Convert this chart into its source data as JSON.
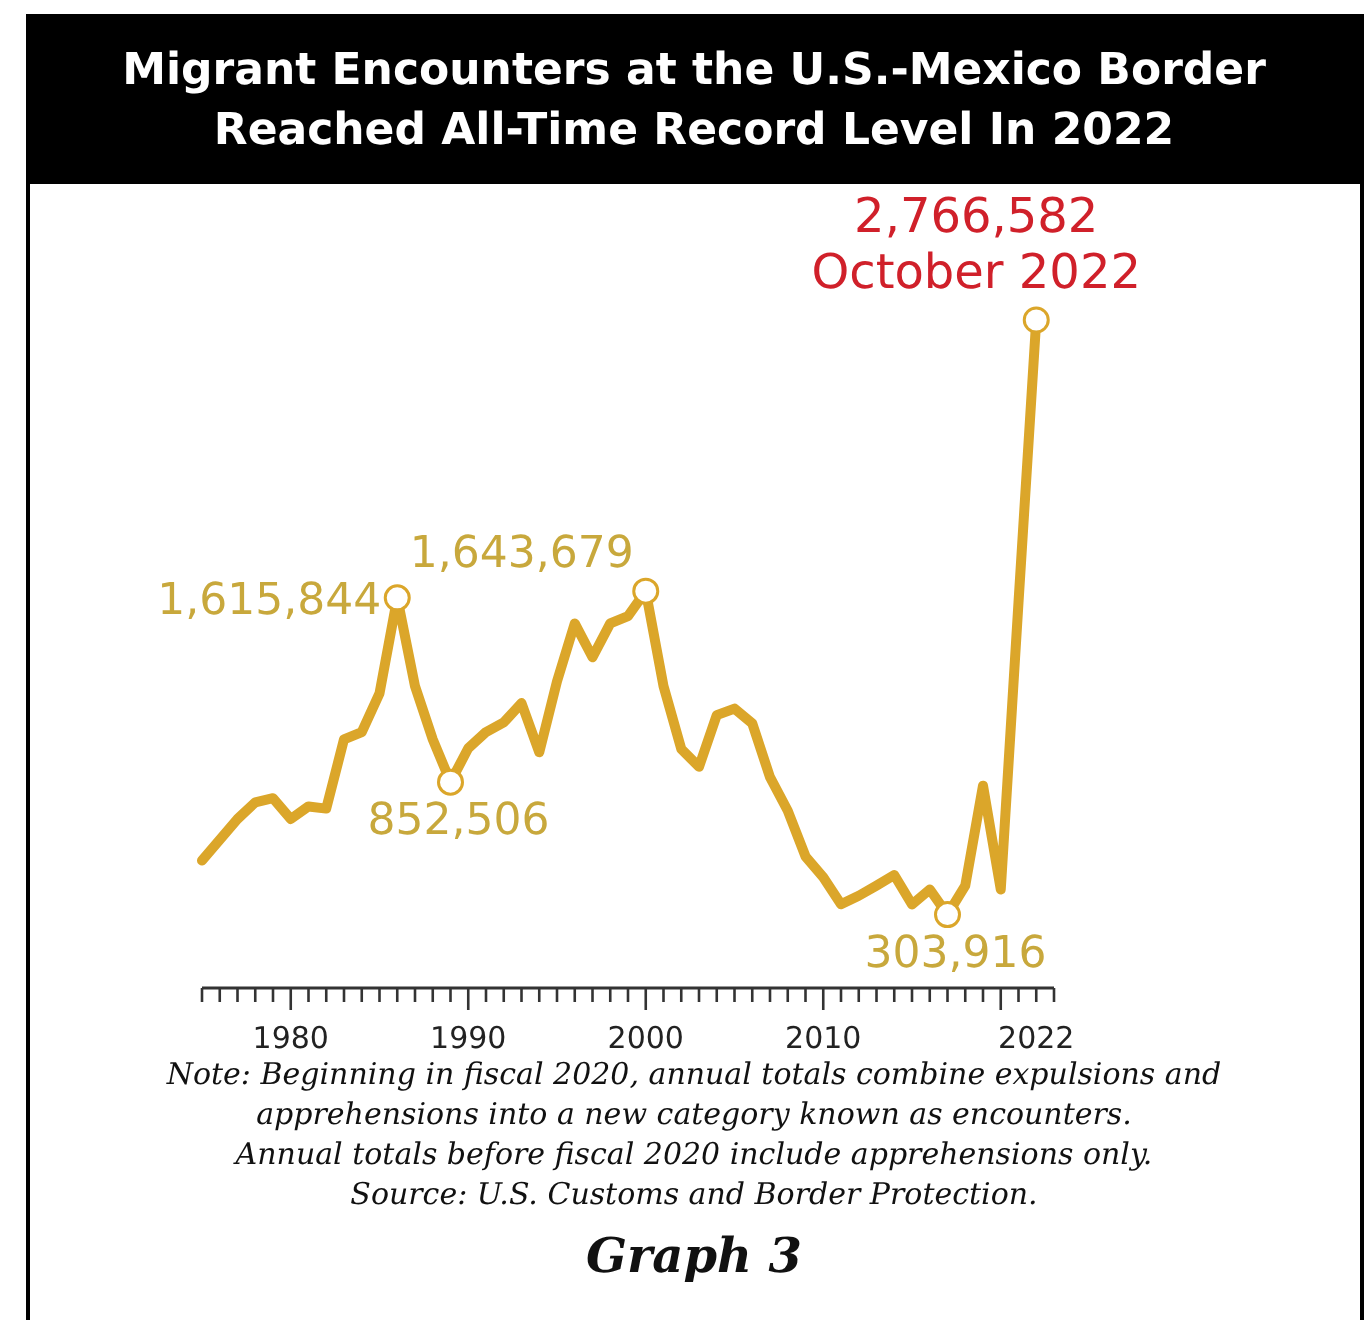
{
  "chart_data": {
    "type": "line",
    "title": "Migrant Encounters at the U.S.-Mexico Border Reached  All-Time Record Level In 2022",
    "x": [
      1975,
      1976,
      1977,
      1978,
      1979,
      1980,
      1981,
      1982,
      1983,
      1984,
      1985,
      1986,
      1987,
      1988,
      1989,
      1990,
      1991,
      1992,
      1993,
      1994,
      1995,
      1996,
      1997,
      1998,
      1999,
      2000,
      2001,
      2002,
      2003,
      2004,
      2005,
      2006,
      2007,
      2008,
      2009,
      2010,
      2011,
      2012,
      2013,
      2014,
      2015,
      2016,
      2017,
      2018,
      2019,
      2020,
      2021,
      2022
    ],
    "series": [
      {
        "color": "#dba62a",
        "values": [
          528000,
          614000,
          700000,
          769000,
          786000,
          700000,
          752000,
          743000,
          1030000,
          1060000,
          1220000,
          1615844,
          1250000,
          1030000,
          852506,
          993000,
          1060000,
          1100000,
          1180000,
          976000,
          1270000,
          1510000,
          1370000,
          1510000,
          1540000,
          1643679,
          1250000,
          990000,
          916000,
          1130000,
          1157000,
          1096000,
          873000,
          734000,
          545000,
          459000,
          347000,
          382000,
          424000,
          468000,
          346000,
          408000,
          303916,
          424000,
          838000,
          408000,
          1597000,
          2766582
        ],
        "value_labels": [
          null,
          null,
          null,
          null,
          null,
          null,
          null,
          null,
          null,
          null,
          null,
          "1,615,844",
          null,
          null,
          "852,506",
          null,
          null,
          null,
          null,
          null,
          null,
          null,
          null,
          null,
          null,
          "1,643,679",
          null,
          null,
          null,
          null,
          null,
          null,
          null,
          null,
          null,
          null,
          null,
          null,
          null,
          null,
          null,
          null,
          "303,916",
          null,
          null,
          null,
          null,
          null
        ]
      }
    ],
    "xlim": [
      1975,
      2023
    ],
    "xticks": [
      {
        "value": 1975,
        "label": null
      },
      {
        "value": 1976,
        "label": null
      },
      {
        "value": 1977,
        "label": null
      },
      {
        "value": 1978,
        "label": null
      },
      {
        "value": 1979,
        "label": null
      },
      1980,
      {
        "value": 1981,
        "label": null
      },
      {
        "value": 1982,
        "label": null
      },
      {
        "value": 1983,
        "label": null
      },
      {
        "value": 1984,
        "label": null
      },
      {
        "value": 1985,
        "label": null
      },
      {
        "value": 1986,
        "label": null
      },
      {
        "value": 1987,
        "label": null
      },
      {
        "value": 1988,
        "label": null
      },
      {
        "value": 1989,
        "label": null
      },
      1990,
      {
        "value": 1991,
        "label": null
      },
      {
        "value": 1992,
        "label": null
      },
      {
        "value": 1993,
        "label": null
      },
      {
        "value": 1994,
        "label": null
      },
      {
        "value": 1995,
        "label": null
      },
      {
        "value": 1996,
        "label": null
      },
      {
        "value": 1997,
        "label": null
      },
      {
        "value": 1998,
        "label": null
      },
      {
        "value": 1999,
        "label": null
      },
      2000,
      {
        "value": 2001,
        "label": null
      },
      {
        "value": 2002,
        "label": null
      },
      {
        "value": 2003,
        "label": null
      },
      {
        "value": 2004,
        "label": null
      },
      {
        "value": 2005,
        "label": null
      },
      {
        "value": 2006,
        "label": null
      },
      {
        "value": 2007,
        "label": null
      },
      {
        "value": 2008,
        "label": null
      },
      {
        "value": 2009,
        "label": null
      },
      2010,
      {
        "value": 2011,
        "label": null
      },
      {
        "value": 2012,
        "label": null
      },
      {
        "value": 2013,
        "label": null
      },
      {
        "value": 2014,
        "label": null
      },
      {
        "value": 2015,
        "label": null
      },
      {
        "value": 2016,
        "label": null
      },
      {
        "value": 2017,
        "label": null
      },
      {
        "value": 2018,
        "label": null
      },
      {
        "value": 2019,
        "label": null
      },
      {
        "value": 2020,
        "label": null
      },
      {
        "value": 2021,
        "label": null
      },
      2022,
      {
        "value": 2023,
        "label": null
      }
    ],
    "tick_labels": "x",
    "annotations": [
      {
        "text": "2,766,582\nOctober 2022",
        "x": 2022,
        "y": 2766582
      },
      "Note: Beginning in fiscal 2020, annual totals combine expulsions  and apprehensions into a new category known as encounters.",
      "Annual totals before fiscal 2020 include apprehensions only.",
      "Source: U.S. Customs and Border Protection.",
      "Graph 3"
    ]
  }
}
